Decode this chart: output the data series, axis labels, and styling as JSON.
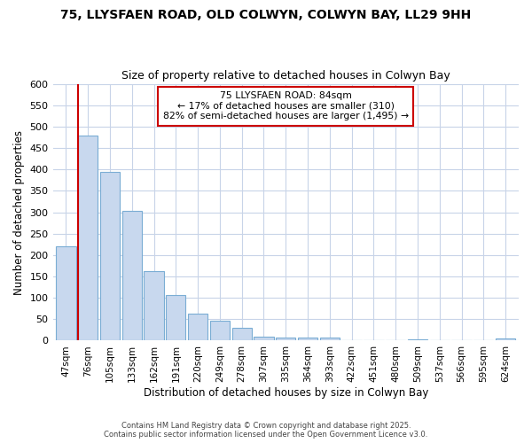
{
  "title1": "75, LLYSFAEN ROAD, OLD COLWYN, COLWYN BAY, LL29 9HH",
  "title2": "Size of property relative to detached houses in Colwyn Bay",
  "xlabel": "Distribution of detached houses by size in Colwyn Bay",
  "ylabel": "Number of detached properties",
  "categories": [
    "47sqm",
    "76sqm",
    "105sqm",
    "133sqm",
    "162sqm",
    "191sqm",
    "220sqm",
    "249sqm",
    "278sqm",
    "307sqm",
    "335sqm",
    "364sqm",
    "393sqm",
    "422sqm",
    "451sqm",
    "480sqm",
    "509sqm",
    "537sqm",
    "566sqm",
    "595sqm",
    "624sqm"
  ],
  "values": [
    220,
    480,
    395,
    303,
    163,
    107,
    63,
    46,
    30,
    10,
    8,
    8,
    7,
    0,
    0,
    0,
    4,
    0,
    0,
    0,
    5
  ],
  "bar_color": "#c8d8ee",
  "bar_edge_color": "#7aadd4",
  "vline_label": "75 LLYSFAEN ROAD: 84sqm",
  "annotation_line1": "← 17% of detached houses are smaller (310)",
  "annotation_line2": "82% of semi-detached houses are larger (1,495) →",
  "vline_color": "#cc0000",
  "annotation_box_edge": "#cc0000",
  "background_color": "#ffffff",
  "grid_color": "#c8d4e8",
  "footer1": "Contains HM Land Registry data © Crown copyright and database right 2025.",
  "footer2": "Contains public sector information licensed under the Open Government Licence v3.0.",
  "ylim": [
    0,
    600
  ],
  "yticks": [
    0,
    50,
    100,
    150,
    200,
    250,
    300,
    350,
    400,
    450,
    500,
    550,
    600
  ]
}
